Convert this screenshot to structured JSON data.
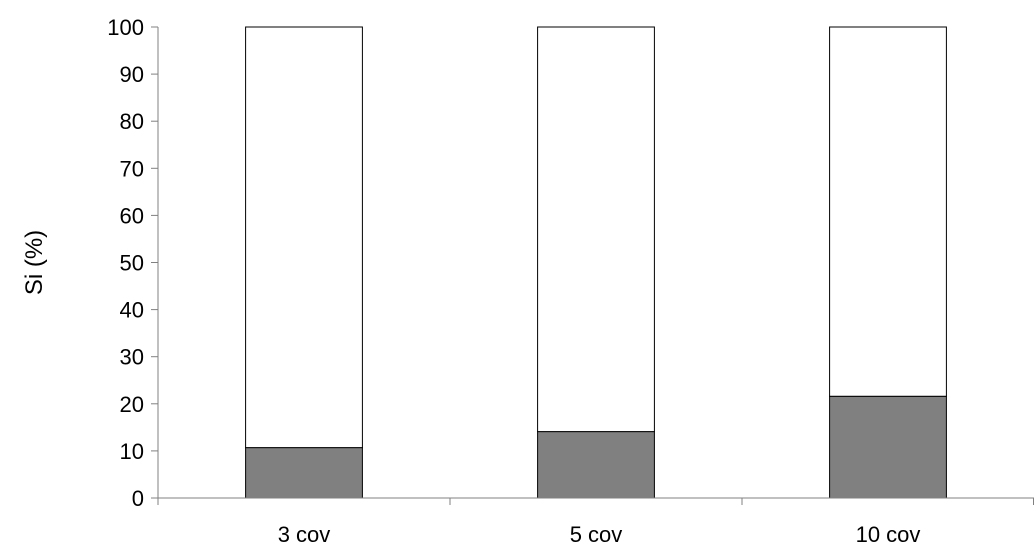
{
  "chart_data": {
    "type": "bar",
    "stacked": true,
    "categories": [
      "3 cov",
      "5 cov",
      "10 cov"
    ],
    "series": [
      {
        "values": [
          10.7,
          14.1,
          21.6
        ],
        "color": "#808080"
      },
      {
        "values": [
          89.3,
          85.9,
          78.4
        ],
        "color": "#ffffff"
      }
    ],
    "xlabel": "",
    "ylabel": "Si (%)",
    "ylim": [
      0,
      100
    ],
    "yticks": [
      0,
      10,
      20,
      30,
      40,
      50,
      60,
      70,
      80,
      90,
      100
    ],
    "grid": false,
    "legend": false
  }
}
